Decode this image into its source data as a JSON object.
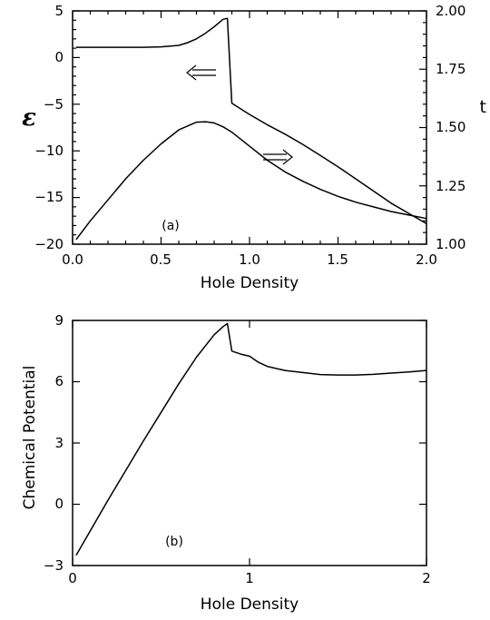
{
  "chart_data": [
    {
      "type": "line",
      "panel_label": "(a)",
      "xlabel": "Hole Density",
      "ylabel": "ε",
      "ylabel_right": "t",
      "xlim": [
        0.0,
        2.0
      ],
      "ylim": [
        -20,
        5
      ],
      "ylim_right": [
        1.0,
        2.0
      ],
      "x_ticks": [
        "0.0",
        "0.5",
        "1.0",
        "1.5",
        "2.0"
      ],
      "y_ticks": [
        "5",
        "0",
        "−5",
        "−10",
        "−15",
        "−20"
      ],
      "y_right_ticks": [
        "2.00",
        "1.75",
        "1.50",
        "1.25",
        "1.00"
      ],
      "series": [
        {
          "axis": "left",
          "arrow": "left",
          "x": [
            0.02,
            0.1,
            0.2,
            0.3,
            0.4,
            0.5,
            0.6,
            0.65,
            0.7,
            0.75,
            0.8,
            0.85,
            0.875,
            0.9,
            0.9,
            1.0,
            1.1,
            1.2,
            1.3,
            1.4,
            1.5,
            1.6,
            1.7,
            1.8,
            1.9,
            2.0
          ],
          "values": [
            1.1,
            1.1,
            1.1,
            1.1,
            1.1,
            1.15,
            1.3,
            1.6,
            2.0,
            2.6,
            3.3,
            4.1,
            4.2,
            -4.9,
            -4.9,
            -6.1,
            -7.2,
            -8.2,
            -9.3,
            -10.5,
            -11.7,
            -13.0,
            -14.3,
            -15.6,
            -16.7,
            -17.8
          ]
        },
        {
          "axis": "right",
          "arrow": "right",
          "x": [
            0.02,
            0.1,
            0.2,
            0.3,
            0.4,
            0.5,
            0.6,
            0.7,
            0.75,
            0.8,
            0.85,
            0.9,
            1.0,
            1.1,
            1.2,
            1.3,
            1.4,
            1.5,
            1.6,
            1.7,
            1.8,
            1.9,
            2.0
          ],
          "values": [
            1.02,
            1.1,
            1.19,
            1.28,
            1.36,
            1.43,
            1.49,
            1.523,
            1.525,
            1.52,
            1.503,
            1.48,
            1.42,
            1.36,
            1.31,
            1.27,
            1.235,
            1.205,
            1.18,
            1.16,
            1.14,
            1.125,
            1.11
          ]
        }
      ]
    },
    {
      "type": "line",
      "panel_label": "(b)",
      "xlabel": "Hole Density",
      "ylabel": "Chemical Potential",
      "xlim": [
        0,
        2
      ],
      "ylim": [
        -3,
        9
      ],
      "x_ticks": [
        "0",
        "1",
        "2"
      ],
      "y_ticks": [
        "9",
        "6",
        "3",
        "0",
        "−3"
      ],
      "series": [
        {
          "x": [
            0.02,
            0.1,
            0.2,
            0.3,
            0.4,
            0.5,
            0.6,
            0.7,
            0.8,
            0.85,
            0.875,
            0.9,
            0.95,
            1.0,
            1.05,
            1.1,
            1.2,
            1.3,
            1.4,
            1.5,
            1.6,
            1.7,
            1.8,
            1.9,
            2.0
          ],
          "values": [
            -2.5,
            -1.3,
            0.2,
            1.65,
            3.1,
            4.5,
            5.9,
            7.2,
            8.3,
            8.7,
            8.85,
            7.5,
            7.35,
            7.25,
            6.95,
            6.75,
            6.55,
            6.45,
            6.35,
            6.33,
            6.33,
            6.36,
            6.42,
            6.48,
            6.55
          ]
        }
      ]
    }
  ]
}
